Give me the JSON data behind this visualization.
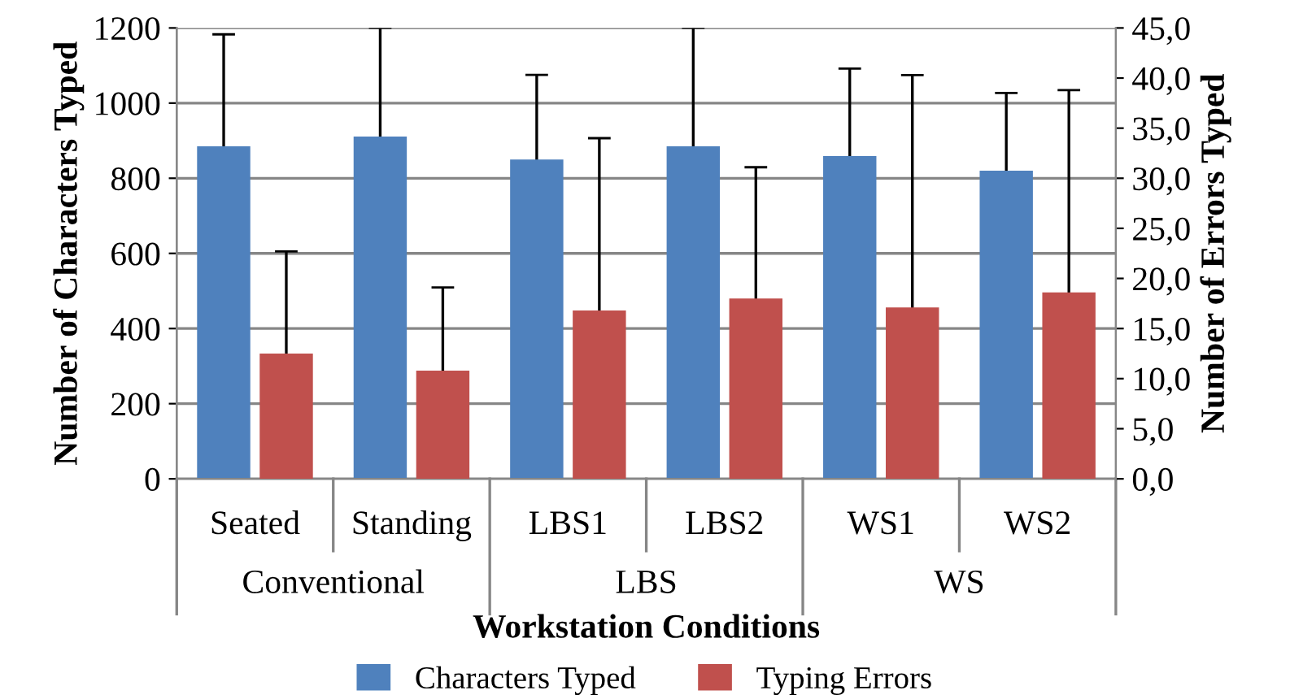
{
  "chart_data": {
    "type": "bar",
    "xlabel": "Workstation Conditions",
    "ylabel": "Number of Characters Typed",
    "y2label": "Number of Errors Typed",
    "categories": [
      "Seated",
      "Standing",
      "LBS1",
      "LBS2",
      "WS1",
      "WS2"
    ],
    "annotations": [
      "Conventional",
      "LBS",
      "WS"
    ],
    "series": [
      {
        "name": "Characters Typed",
        "color": "#4f81bd",
        "values": [
          885,
          911,
          850,
          885,
          859,
          820
        ],
        "errors": [
          298,
          289,
          225,
          315,
          233,
          207
        ]
      },
      {
        "name": "Typing Errors",
        "color": "#c0504d",
        "axis": "y2",
        "values": [
          12.5,
          10.8,
          16.8,
          18.0,
          17.1,
          18.6
        ],
        "errors": [
          10.2,
          8.3,
          17.2,
          13.1,
          23.2,
          20.2
        ]
      }
    ],
    "ylim": [
      0,
      1200
    ],
    "yticks": [
      0,
      200,
      400,
      600,
      800,
      1000,
      1200
    ],
    "y2lim": [
      0,
      45
    ],
    "y2ticks": [
      {
        "value": 0,
        "label": "0,0"
      },
      {
        "value": 5,
        "label": "5,0"
      },
      {
        "value": 10,
        "label": "10,0"
      },
      {
        "value": 15,
        "label": "15,0"
      },
      {
        "value": 20,
        "label": "20,0"
      },
      {
        "value": 25,
        "label": "25,0"
      },
      {
        "value": 30,
        "label": "30,0"
      },
      {
        "value": 35,
        "label": "35,0"
      },
      {
        "value": 40,
        "label": "40,0"
      },
      {
        "value": 45,
        "label": "45,0"
      }
    ],
    "grid": "y",
    "legend": "bottom"
  }
}
